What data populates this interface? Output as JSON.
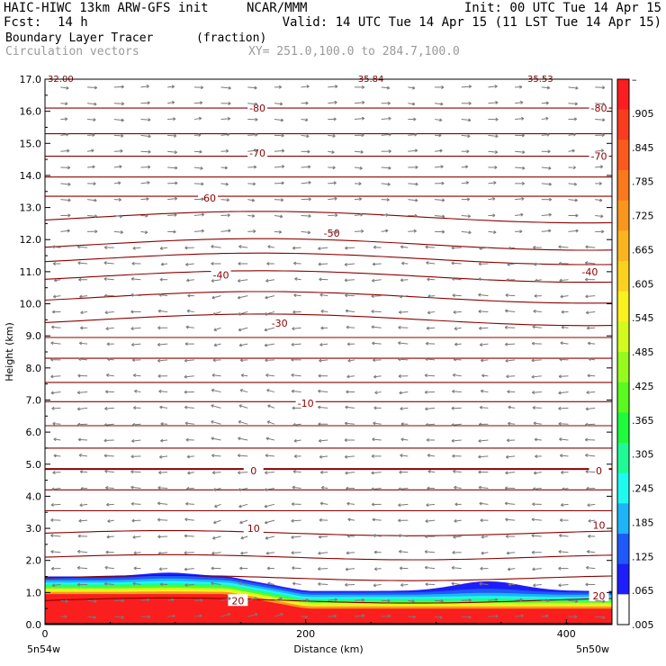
{
  "header": {
    "line1_left": "HAIC-HIWC 13km ARW-GFS init",
    "line1_mid": "NCAR/MMM",
    "line1_right": "Init: 00 UTC Tue 14 Apr 15",
    "line2_left": "Fcst:",
    "line2_fcst": "14 h",
    "line2_right": "Valid: 14 UTC Tue 14 Apr 15 (11 LST Tue 14 Apr 15)",
    "field_name": "Boundary Layer Tracer",
    "field_units": "(fraction)",
    "vector_label": "Circulation vectors",
    "xy_label": "XY= 251.0,100.0 to 284.7,100.0"
  },
  "chart_data": {
    "type": "heatmap",
    "xlabel": "Distance (km)",
    "ylabel": "Height (km)",
    "xlim": [
      0,
      435
    ],
    "ylim": [
      0,
      17
    ],
    "x_ticks": [
      0,
      200,
      400
    ],
    "y_ticks": [
      "0.0",
      "1.0",
      "2.0",
      "3.0",
      "4.0",
      "5.0",
      "6.0",
      "7.0",
      "8.0",
      "9.0",
      "10.0",
      "11.0",
      "12.0",
      "13.0",
      "14.0",
      "15.0",
      "16.0",
      "17.0"
    ],
    "x_end_labels": {
      "left": "5n54w",
      "right": "5n50w"
    },
    "colorbar": {
      "labels": [
        "–",
        ".905",
        ".845",
        ".785",
        ".725",
        ".665",
        ".605",
        ".545",
        ".485",
        ".425",
        ".365",
        ".305",
        ".245",
        ".185",
        ".125",
        ".065",
        ".005"
      ],
      "colors": [
        "#fa1e1e",
        "#fa3c1e",
        "#fa5a1e",
        "#fa781e",
        "#fa961e",
        "#fab41e",
        "#fad21e",
        "#faf01e",
        "#d2fa1e",
        "#96fa1e",
        "#5afa1e",
        "#1efa3c",
        "#1efa96",
        "#1efaf0",
        "#1eb4fa",
        "#1e5afa",
        "#1e1efa",
        "#ffffff"
      ]
    },
    "isotherm_labels": [
      {
        "text": "-80",
        "x": 163,
        "y": 16.1
      },
      {
        "text": "-80",
        "x": 425,
        "y": 16.1
      },
      {
        "text": "-70",
        "x": 163,
        "y": 14.7
      },
      {
        "text": "-70",
        "x": 425,
        "y": 14.6
      },
      {
        "text": "-60",
        "x": 125,
        "y": 13.3
      },
      {
        "text": "-50",
        "x": 220,
        "y": 12.2
      },
      {
        "text": "-40",
        "x": 135,
        "y": 10.9
      },
      {
        "text": "-40",
        "x": 418,
        "y": 11.0
      },
      {
        "text": "-30",
        "x": 180,
        "y": 9.4
      },
      {
        "text": "-10",
        "x": 200,
        "y": 6.9
      },
      {
        "text": "0",
        "x": 160,
        "y": 4.8
      },
      {
        "text": "0",
        "x": 425,
        "y": 4.8
      },
      {
        "text": "10",
        "x": 160,
        "y": 3.0
      },
      {
        "text": "10",
        "x": 425,
        "y": 3.1
      },
      {
        "text": "20",
        "x": 148,
        "y": 0.75
      },
      {
        "text": "20",
        "x": 425,
        "y": 0.9
      }
    ],
    "top_edge_labels": [
      {
        "text": "32.00",
        "x": 12
      },
      {
        "text": "35.84",
        "x": 250
      },
      {
        "text": "35.53",
        "x": 380
      }
    ]
  }
}
